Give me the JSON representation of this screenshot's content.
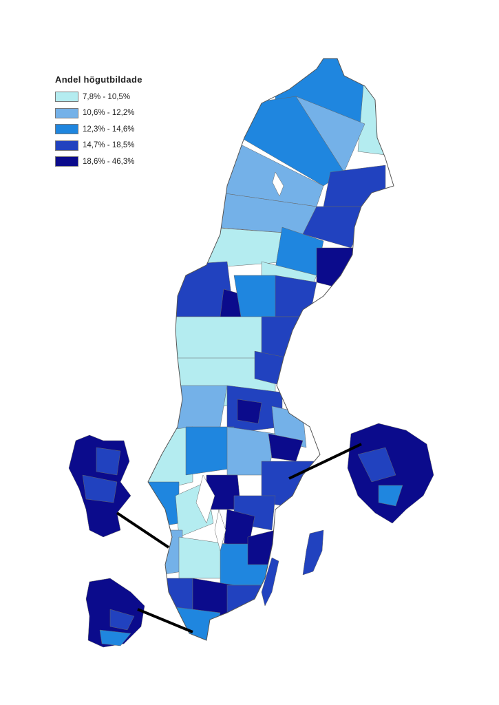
{
  "legend": {
    "title": "Andel högutbildade",
    "items": [
      {
        "label": "7,8% - 10,5%",
        "color": "#b4ecf0"
      },
      {
        "label": "10,6% - 12,2%",
        "color": "#74b1e8"
      },
      {
        "label": "12,3% - 14,6%",
        "color": "#1f86df"
      },
      {
        "label": "14,7% - 18,5%",
        "color": "#2142bf"
      },
      {
        "label": "18,6% - 46,3%",
        "color": "#0b0b8c"
      }
    ]
  },
  "map": {
    "outline_color": "#555555",
    "connector_color": "#000000"
  }
}
